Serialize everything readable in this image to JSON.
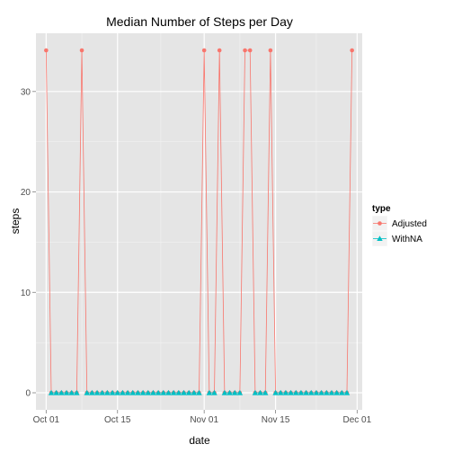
{
  "chart_data": {
    "type": "line",
    "title": "Median Number of Steps per Day",
    "xlabel": "date",
    "ylabel": "steps",
    "x_ticks": [
      "Oct 01",
      "Oct 15",
      "Nov 01",
      "Nov 15",
      "Dec 01"
    ],
    "y_ticks": [
      "0",
      "10",
      "20",
      "30"
    ],
    "ylim": [
      -1.7,
      35.8
    ],
    "xlim": [
      "2012-09-29",
      "2012-12-02"
    ],
    "grid": true,
    "legend_position": "right",
    "legend_title": "type",
    "x": [
      "2012-10-01",
      "2012-10-02",
      "2012-10-03",
      "2012-10-04",
      "2012-10-05",
      "2012-10-06",
      "2012-10-07",
      "2012-10-08",
      "2012-10-09",
      "2012-10-10",
      "2012-10-11",
      "2012-10-12",
      "2012-10-13",
      "2012-10-14",
      "2012-10-15",
      "2012-10-16",
      "2012-10-17",
      "2012-10-18",
      "2012-10-19",
      "2012-10-20",
      "2012-10-21",
      "2012-10-22",
      "2012-10-23",
      "2012-10-24",
      "2012-10-25",
      "2012-10-26",
      "2012-10-27",
      "2012-10-28",
      "2012-10-29",
      "2012-10-30",
      "2012-10-31",
      "2012-11-01",
      "2012-11-02",
      "2012-11-03",
      "2012-11-04",
      "2012-11-05",
      "2012-11-06",
      "2012-11-07",
      "2012-11-08",
      "2012-11-09",
      "2012-11-10",
      "2012-11-11",
      "2012-11-12",
      "2012-11-13",
      "2012-11-14",
      "2012-11-15",
      "2012-11-16",
      "2012-11-17",
      "2012-11-18",
      "2012-11-19",
      "2012-11-20",
      "2012-11-21",
      "2012-11-22",
      "2012-11-23",
      "2012-11-24",
      "2012-11-25",
      "2012-11-26",
      "2012-11-27",
      "2012-11-28",
      "2012-11-29",
      "2012-11-30"
    ],
    "series": [
      {
        "name": "Adjusted",
        "color": "#f8766d",
        "marker": "circle",
        "values": [
          34.1,
          0,
          0,
          0,
          0,
          0,
          0,
          34.1,
          0,
          0,
          0,
          0,
          0,
          0,
          0,
          0,
          0,
          0,
          0,
          0,
          0,
          0,
          0,
          0,
          0,
          0,
          0,
          0,
          0,
          0,
          0,
          34.1,
          0,
          0,
          34.1,
          0,
          0,
          0,
          0,
          34.1,
          34.1,
          0,
          0,
          0,
          34.1,
          0,
          0,
          0,
          0,
          0,
          0,
          0,
          0,
          0,
          0,
          0,
          0,
          0,
          0,
          0,
          34.1
        ]
      },
      {
        "name": "WithNA",
        "color": "#00bfc4",
        "marker": "triangle",
        "values": [
          null,
          0,
          0,
          0,
          0,
          0,
          0,
          null,
          0,
          0,
          0,
          0,
          0,
          0,
          0,
          0,
          0,
          0,
          0,
          0,
          0,
          0,
          0,
          0,
          0,
          0,
          0,
          0,
          0,
          0,
          0,
          null,
          0,
          0,
          null,
          0,
          0,
          0,
          0,
          null,
          null,
          0,
          0,
          0,
          null,
          0,
          0,
          0,
          0,
          0,
          0,
          0,
          0,
          0,
          0,
          0,
          0,
          0,
          0,
          0,
          null
        ]
      }
    ]
  }
}
